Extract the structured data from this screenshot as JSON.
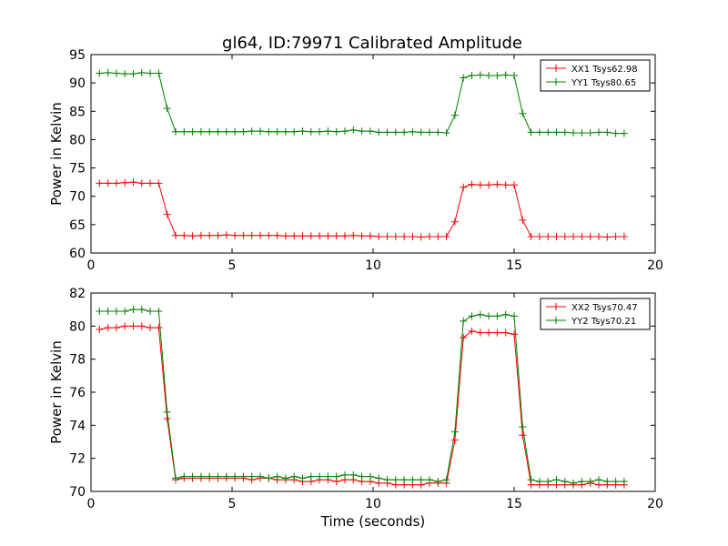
{
  "title": "gl64, ID:79971 Calibrated Amplitude",
  "chart_data": [
    {
      "type": "line",
      "ylabel": "Power in Kelvin",
      "xlabel": "",
      "xlim": [
        0,
        20
      ],
      "ylim": [
        60,
        95
      ],
      "xticks": [
        0,
        5,
        10,
        15,
        20
      ],
      "yticks": [
        60,
        65,
        70,
        75,
        80,
        85,
        90,
        95
      ],
      "legend_position": "top-right",
      "x": [
        0.3,
        0.6,
        0.9,
        1.2,
        1.5,
        1.8,
        2.1,
        2.4,
        2.7,
        3.0,
        3.3,
        3.6,
        3.9,
        4.2,
        4.5,
        4.8,
        5.1,
        5.4,
        5.7,
        6.0,
        6.3,
        6.6,
        6.9,
        7.2,
        7.5,
        7.8,
        8.1,
        8.4,
        8.7,
        9.0,
        9.3,
        9.6,
        9.9,
        10.2,
        10.5,
        10.8,
        11.1,
        11.4,
        11.7,
        12.0,
        12.3,
        12.6,
        12.9,
        13.2,
        13.5,
        13.8,
        14.1,
        14.4,
        14.7,
        15.0,
        15.3,
        15.6,
        15.9,
        16.2,
        16.5,
        16.8,
        17.1,
        17.4,
        17.7,
        18.0,
        18.3,
        18.6,
        18.9
      ],
      "series": [
        {
          "name": "XX1 Tsys62.98",
          "color": "#ff0000",
          "values": [
            72.3,
            72.3,
            72.3,
            72.4,
            72.5,
            72.3,
            72.3,
            72.3,
            66.8,
            63.1,
            63.1,
            63.0,
            63.1,
            63.1,
            63.1,
            63.2,
            63.1,
            63.1,
            63.1,
            63.1,
            63.1,
            63.1,
            63.0,
            63.0,
            63.0,
            63.0,
            63.0,
            63.0,
            63.0,
            63.0,
            63.1,
            63.0,
            63.0,
            62.9,
            62.9,
            62.9,
            62.9,
            62.9,
            62.8,
            62.9,
            62.9,
            62.9,
            65.5,
            71.6,
            72.1,
            72.0,
            72.0,
            72.1,
            72.0,
            72.0,
            65.8,
            62.9,
            62.9,
            62.9,
            62.9,
            62.9,
            62.9,
            62.9,
            62.9,
            62.9,
            62.8,
            62.9,
            62.9
          ]
        },
        {
          "name": "YY1 Tsys80.65",
          "color": "#008000",
          "values": [
            91.7,
            91.8,
            91.7,
            91.6,
            91.6,
            91.8,
            91.7,
            91.7,
            85.5,
            81.4,
            81.4,
            81.4,
            81.4,
            81.4,
            81.4,
            81.4,
            81.4,
            81.4,
            81.5,
            81.5,
            81.4,
            81.4,
            81.4,
            81.4,
            81.5,
            81.4,
            81.4,
            81.5,
            81.4,
            81.5,
            81.7,
            81.5,
            81.5,
            81.3,
            81.3,
            81.3,
            81.3,
            81.4,
            81.3,
            81.3,
            81.3,
            81.2,
            84.3,
            90.9,
            91.3,
            91.4,
            91.3,
            91.3,
            91.4,
            91.3,
            84.6,
            81.3,
            81.3,
            81.3,
            81.3,
            81.3,
            81.2,
            81.2,
            81.2,
            81.3,
            81.3,
            81.1,
            81.1
          ]
        }
      ]
    },
    {
      "type": "line",
      "ylabel": "Power in Kelvin",
      "xlabel": "Time (seconds)",
      "xlim": [
        0,
        20
      ],
      "ylim": [
        70,
        82
      ],
      "xticks": [
        0,
        5,
        10,
        15,
        20
      ],
      "yticks": [
        70,
        72,
        74,
        76,
        78,
        80,
        82
      ],
      "legend_position": "top-right",
      "x": [
        0.3,
        0.6,
        0.9,
        1.2,
        1.5,
        1.8,
        2.1,
        2.4,
        2.7,
        3.0,
        3.3,
        3.6,
        3.9,
        4.2,
        4.5,
        4.8,
        5.1,
        5.4,
        5.7,
        6.0,
        6.3,
        6.6,
        6.9,
        7.2,
        7.5,
        7.8,
        8.1,
        8.4,
        8.7,
        9.0,
        9.3,
        9.6,
        9.9,
        10.2,
        10.5,
        10.8,
        11.1,
        11.4,
        11.7,
        12.0,
        12.3,
        12.6,
        12.9,
        13.2,
        13.5,
        13.8,
        14.1,
        14.4,
        14.7,
        15.0,
        15.3,
        15.6,
        15.9,
        16.2,
        16.5,
        16.8,
        17.1,
        17.4,
        17.7,
        18.0,
        18.3,
        18.6,
        18.9
      ],
      "series": [
        {
          "name": "XX2 Tsys70.47",
          "color": "#ff0000",
          "values": [
            79.8,
            79.9,
            79.9,
            80.0,
            80.0,
            80.0,
            79.9,
            79.9,
            74.4,
            70.7,
            70.8,
            70.8,
            70.8,
            70.8,
            70.8,
            70.8,
            70.8,
            70.8,
            70.7,
            70.8,
            70.8,
            70.7,
            70.7,
            70.7,
            70.6,
            70.6,
            70.7,
            70.7,
            70.6,
            70.7,
            70.7,
            70.6,
            70.6,
            70.5,
            70.5,
            70.4,
            70.4,
            70.4,
            70.4,
            70.5,
            70.5,
            70.5,
            73.1,
            79.3,
            79.7,
            79.6,
            79.6,
            79.6,
            79.6,
            79.5,
            73.4,
            70.4,
            70.4,
            70.4,
            70.4,
            70.4,
            70.4,
            70.4,
            70.5,
            70.4,
            70.4,
            70.4,
            70.4
          ]
        },
        {
          "name": "YY2 Tsys70.21",
          "color": "#008000",
          "values": [
            80.9,
            80.9,
            80.9,
            80.9,
            81.0,
            81.0,
            80.9,
            80.9,
            74.8,
            70.8,
            70.9,
            70.9,
            70.9,
            70.9,
            70.9,
            70.9,
            70.9,
            70.9,
            70.9,
            70.9,
            70.8,
            70.9,
            70.8,
            70.9,
            70.8,
            70.9,
            70.9,
            70.9,
            70.9,
            71.0,
            71.0,
            70.9,
            70.9,
            70.8,
            70.7,
            70.7,
            70.7,
            70.7,
            70.7,
            70.7,
            70.6,
            70.7,
            73.6,
            80.3,
            80.6,
            80.7,
            80.6,
            80.6,
            80.7,
            80.6,
            73.9,
            70.7,
            70.6,
            70.6,
            70.7,
            70.6,
            70.5,
            70.6,
            70.6,
            70.7,
            70.6,
            70.6,
            70.6
          ]
        }
      ]
    }
  ]
}
